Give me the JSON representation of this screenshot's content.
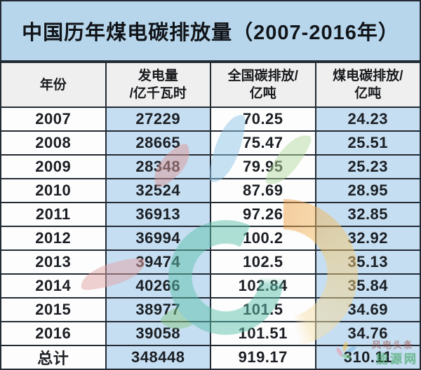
{
  "title": "中国历年煤电碳排放量（2007-2016年）",
  "table": {
    "headers": [
      {
        "line1": "年份",
        "line2": ""
      },
      {
        "line1": "发电量",
        "line2": "/亿千瓦时"
      },
      {
        "line1": "全国碳排放/",
        "line2": "亿吨"
      },
      {
        "line1": "煤电碳排放/",
        "line2": "亿吨"
      }
    ],
    "rows": [
      [
        "2007",
        "27229",
        "70.25",
        "24.23"
      ],
      [
        "2008",
        "28665",
        "75.47",
        "25.51"
      ],
      [
        "2009",
        "28348",
        "79.95",
        "25.23"
      ],
      [
        "2010",
        "32524",
        "87.69",
        "28.95"
      ],
      [
        "2011",
        "36913",
        "97.26",
        "32.85"
      ],
      [
        "2012",
        "36994",
        "100.2",
        "32.92"
      ],
      [
        "2013",
        "39474",
        "102.5",
        "35.13"
      ],
      [
        "2014",
        "40266",
        "102.84",
        "35.84"
      ],
      [
        "2015",
        "38977",
        "101.5",
        "34.69"
      ],
      [
        "2016",
        "39058",
        "101.51",
        "34.76"
      ],
      [
        "总计",
        "348448",
        "919.17",
        "310.11"
      ]
    ]
  },
  "watermark": {
    "site_line1": "风电头条",
    "site_line2": "能源网"
  },
  "colors": {
    "title_bg": "#b7d6ec",
    "header_bg": "#efefef",
    "cell_white": "#fdfdfd",
    "cell_blue": "#c6def2",
    "border": "#222a33"
  },
  "chart_data": {
    "type": "table",
    "title": "中国历年煤电碳排放量（2007-2016年）",
    "columns": [
      "年份",
      "发电量/亿千瓦时",
      "全国碳排放/亿吨",
      "煤电碳排放/亿吨"
    ],
    "rows": [
      [
        "2007",
        27229,
        70.25,
        24.23
      ],
      [
        "2008",
        28665,
        75.47,
        25.51
      ],
      [
        "2009",
        28348,
        79.95,
        25.23
      ],
      [
        "2010",
        32524,
        87.69,
        28.95
      ],
      [
        "2011",
        36913,
        97.26,
        32.85
      ],
      [
        "2012",
        36994,
        100.2,
        32.92
      ],
      [
        "2013",
        39474,
        102.5,
        35.13
      ],
      [
        "2014",
        40266,
        102.84,
        35.84
      ],
      [
        "2015",
        38977,
        101.5,
        34.69
      ],
      [
        "2016",
        39058,
        101.51,
        34.76
      ],
      [
        "总计",
        348448,
        919.17,
        310.11
      ]
    ]
  }
}
